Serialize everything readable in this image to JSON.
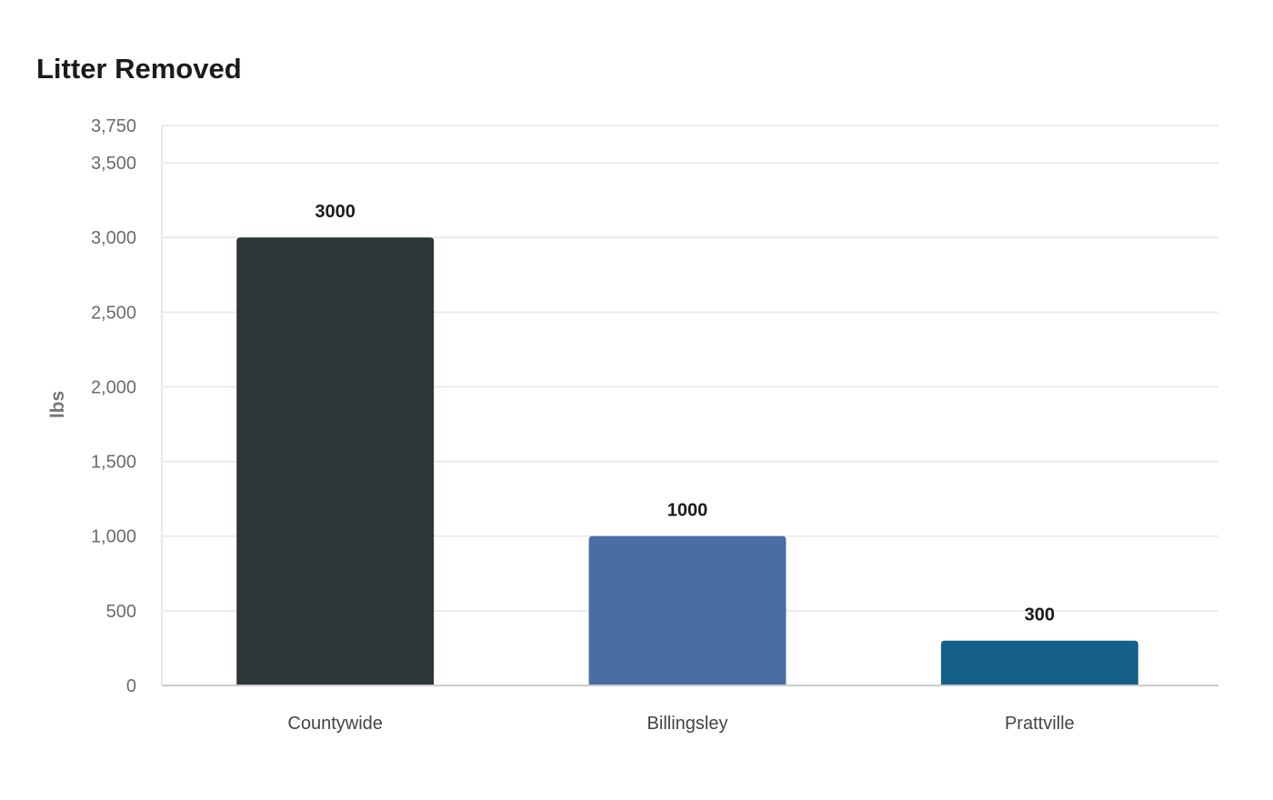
{
  "chart_data": {
    "type": "bar",
    "title": "Litter Removed",
    "xlabel": "",
    "ylabel": "lbs",
    "categories": [
      "Countywide",
      "Billingsley",
      "Prattville"
    ],
    "values": [
      3000,
      1000,
      300
    ],
    "data_labels": [
      "3000",
      "1000",
      "300"
    ],
    "colors": [
      "#2e3538",
      "#4a6ea3",
      "#156089"
    ],
    "ylim": [
      0,
      3750
    ],
    "yticks": [
      0,
      500,
      1000,
      1500,
      2000,
      2500,
      3000,
      3500,
      3750
    ],
    "ytick_labels": [
      "0",
      "500",
      "1,000",
      "1,500",
      "2,000",
      "2,500",
      "3,000",
      "3,500",
      "3,750"
    ],
    "grid": true,
    "legend": false
  }
}
